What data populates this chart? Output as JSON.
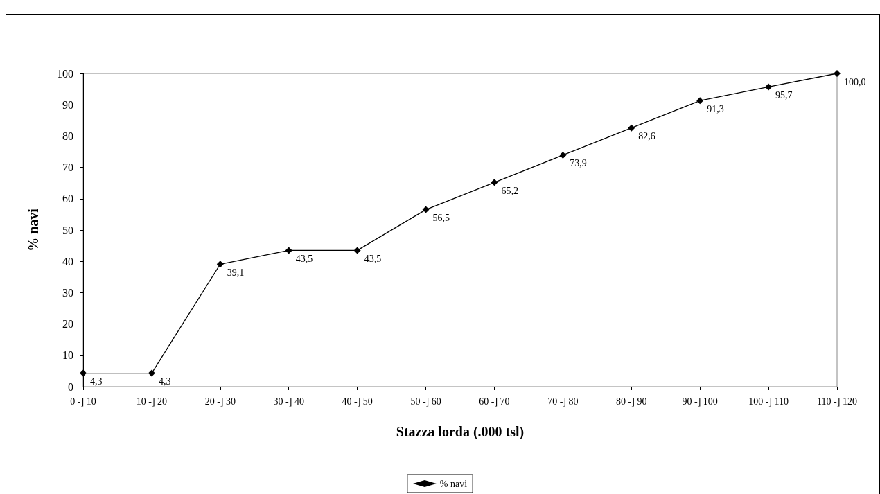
{
  "chart_data": {
    "type": "line",
    "xlabel": "Stazza lorda (.000 tsl)",
    "ylabel": "% navi",
    "categories": [
      "0 -] 10",
      "10 -] 20",
      "20 -] 30",
      "30 -] 40",
      "40 -] 50",
      "50 -] 60",
      "60 -] 70",
      "70 -] 80",
      "80 -] 90",
      "90 -] 100",
      "100 -] 110",
      "110 -] 120"
    ],
    "series": [
      {
        "name": "% navi",
        "color": "#000000",
        "values": [
          4.3,
          4.3,
          39.1,
          43.5,
          43.5,
          56.5,
          65.2,
          73.9,
          82.6,
          91.3,
          95.7,
          100.0
        ]
      }
    ],
    "value_labels": [
      "4,3",
      "4,3",
      "39,1",
      "43,5",
      "43,5",
      "56,5",
      "65,2",
      "73,9",
      "82,6",
      "91,3",
      "95,7",
      "100,0"
    ],
    "ylim": [
      0,
      100
    ],
    "yticks": [
      0,
      10,
      20,
      30,
      40,
      50,
      60,
      70,
      80,
      90,
      100
    ],
    "grid": false,
    "legend": "bottom",
    "marker": "diamond",
    "line_style": "solid"
  }
}
